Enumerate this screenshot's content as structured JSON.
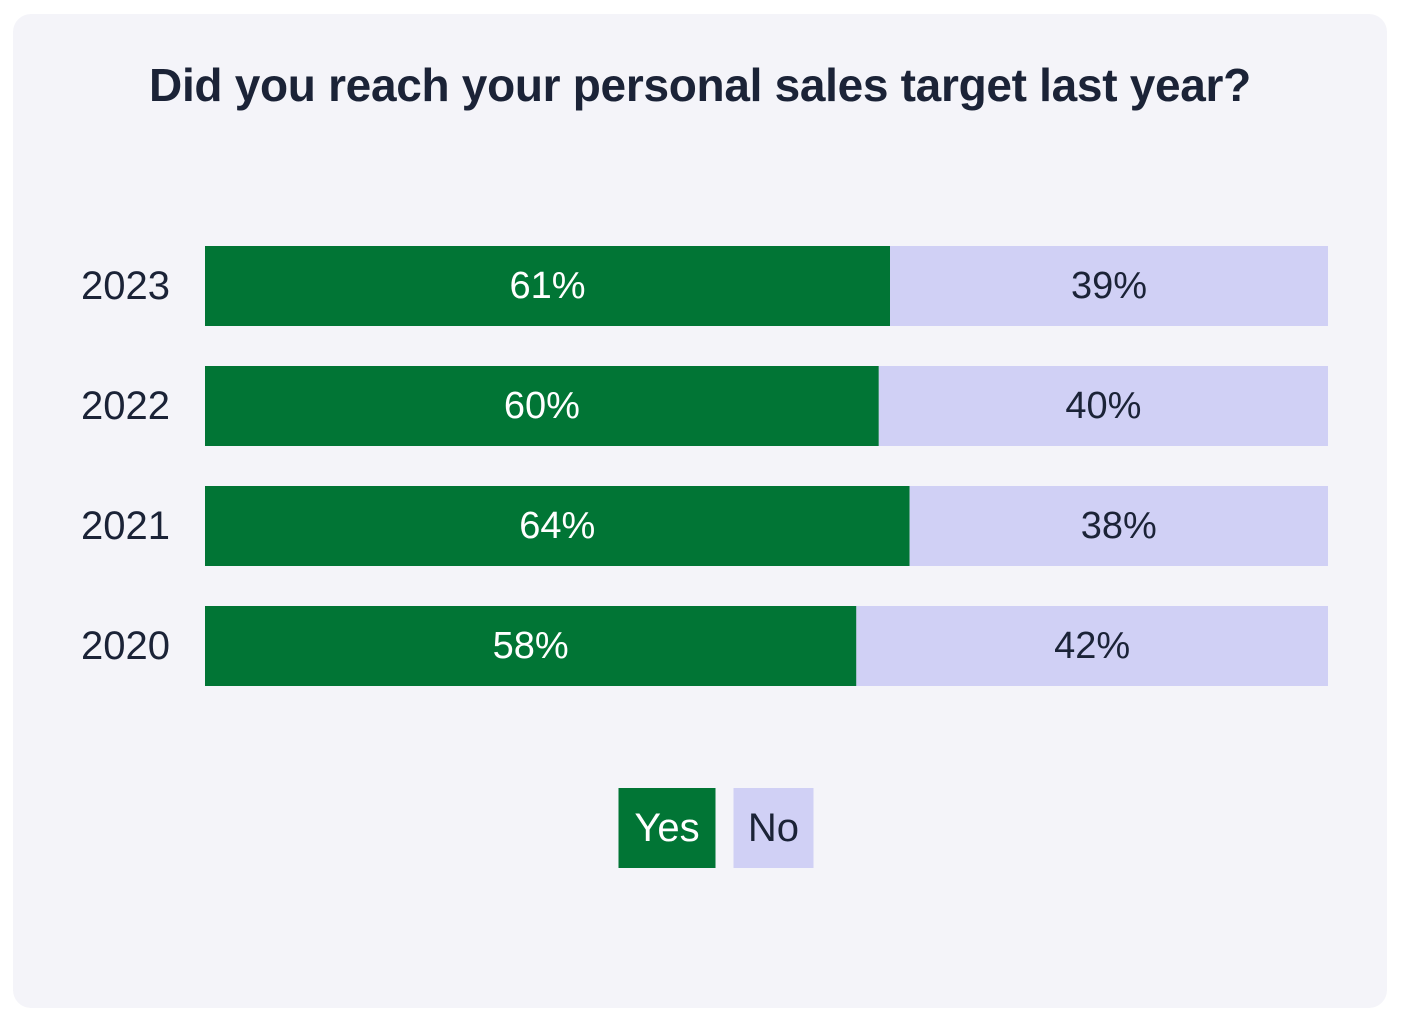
{
  "chart_data": {
    "type": "bar",
    "orientation": "horizontal",
    "stacked": true,
    "title": "Did you reach your personal sales target last year?",
    "categories": [
      "2023",
      "2022",
      "2021",
      "2020"
    ],
    "series": [
      {
        "name": "Yes",
        "values": [
          61,
          60,
          64,
          58
        ],
        "labels": [
          "61%",
          "60%",
          "64%",
          "58%"
        ],
        "color": "#017535",
        "text_color": "#ffffff"
      },
      {
        "name": "No",
        "values": [
          39,
          40,
          38,
          42
        ],
        "labels": [
          "39%",
          "40%",
          "38%",
          "42%"
        ],
        "color": "#d0d0f5",
        "text_color": "#1b2337"
      }
    ],
    "legend_position": "bottom-center",
    "grid": false
  }
}
